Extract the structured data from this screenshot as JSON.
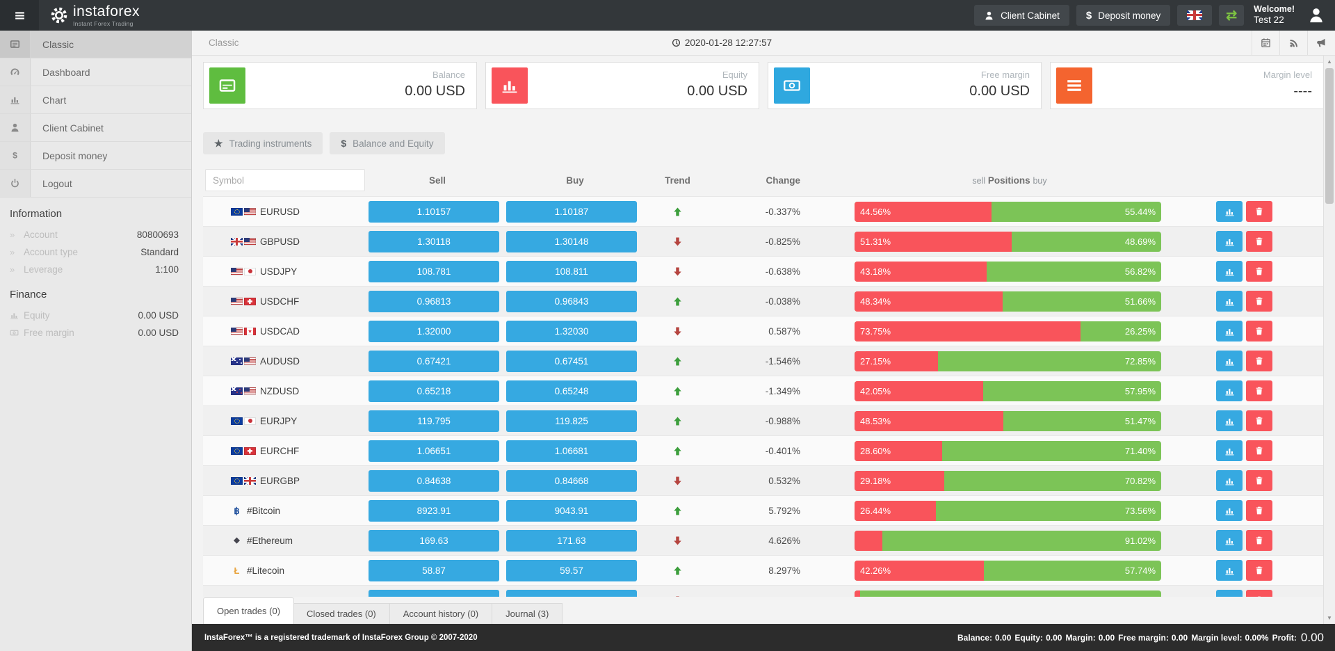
{
  "colors": {
    "blue": "#36A9E1",
    "red": "#F9545B",
    "green_bar": "#7CC457",
    "card_green": "#5FBD3F",
    "card_red": "#F9545B",
    "card_blue": "#2FA8DF",
    "card_orange": "#F4642F",
    "trend_up": "#3C9E3C",
    "trend_down": "#B5443F",
    "topbar": "#33373A"
  },
  "topbar": {
    "brand_name": "instaforex",
    "brand_tagline": "Instant Forex Trading",
    "client_cabinet_label": "Client Cabinet",
    "deposit_money_label": "Deposit money",
    "dollar_glyph": "$",
    "exchange_glyph": "⇄",
    "welcome_line1": "Welcome!",
    "welcome_line2": "Test 22"
  },
  "sidebar": {
    "menu": [
      {
        "label": "Classic",
        "icon": "i-list",
        "active": true
      },
      {
        "label": "Dashboard",
        "icon": "i-gauge"
      },
      {
        "label": "Chart",
        "icon": "i-bars"
      },
      {
        "label": "Client Cabinet",
        "icon": "i-user"
      },
      {
        "label": "Deposit money",
        "icon": "i-dollar"
      },
      {
        "label": "Logout",
        "icon": "i-power"
      }
    ],
    "information": {
      "heading": "Information",
      "rows": [
        {
          "label": "Account",
          "value": "80800693"
        },
        {
          "label": "Account type",
          "value": "Standard"
        },
        {
          "label": "Leverage",
          "value": "1:100"
        }
      ]
    },
    "finance": {
      "heading": "Finance",
      "rows": [
        {
          "label": "Equity",
          "value": "0.00 USD",
          "icon": "i-bars"
        },
        {
          "label": "Free margin",
          "value": "0.00 USD",
          "icon": "i-note"
        }
      ]
    }
  },
  "breadcrumb": {
    "title": "Classic",
    "datetime": "2020-01-28 12:27:57"
  },
  "cards": [
    {
      "label": "Balance",
      "value": "0.00 USD",
      "color": "#5FBD3F",
      "icon": "i-card"
    },
    {
      "label": "Equity",
      "value": "0.00 USD",
      "color": "#F9545B",
      "icon": "i-bars"
    },
    {
      "label": "Free margin",
      "value": "0.00 USD",
      "color": "#2FA8DF",
      "icon": "i-note"
    },
    {
      "label": "Margin level",
      "value": "----",
      "color": "#F4642F",
      "icon": "i-menu"
    }
  ],
  "filters": [
    {
      "label": "Trading instruments",
      "glyph": "★"
    },
    {
      "label": "Balance and Equity",
      "glyph": "$"
    }
  ],
  "table": {
    "symbol_placeholder": "Symbol",
    "headers": {
      "sell": "Sell",
      "buy": "Buy",
      "trend": "Trend",
      "change": "Change",
      "positions_sell": "sell",
      "positions": "Positions",
      "positions_buy": "buy"
    },
    "crypto_glyphs": {
      "btc": "฿",
      "eth": "◆",
      "ltc": "Ł"
    },
    "rows": [
      {
        "symbol": "EURUSD",
        "flags": [
          "eu",
          "us"
        ],
        "sell": "1.10157",
        "buy": "1.10187",
        "trend": "up",
        "change": "-0.337%",
        "sell_pct": 44.56,
        "buy_pct": 55.44,
        "sell_pct_label": "44.56%",
        "buy_pct_label": "55.44%"
      },
      {
        "symbol": "GBPUSD",
        "flags": [
          "gb",
          "us"
        ],
        "sell": "1.30118",
        "buy": "1.30148",
        "trend": "down",
        "change": "-0.825%",
        "sell_pct": 51.31,
        "buy_pct": 48.69,
        "sell_pct_label": "51.31%",
        "buy_pct_label": "48.69%"
      },
      {
        "symbol": "USDJPY",
        "flags": [
          "us",
          "jp"
        ],
        "sell": "108.781",
        "buy": "108.811",
        "trend": "down",
        "change": "-0.638%",
        "sell_pct": 43.18,
        "buy_pct": 56.82,
        "sell_pct_label": "43.18%",
        "buy_pct_label": "56.82%"
      },
      {
        "symbol": "USDCHF",
        "flags": [
          "us",
          "ch"
        ],
        "sell": "0.96813",
        "buy": "0.96843",
        "trend": "up",
        "change": "-0.038%",
        "sell_pct": 48.34,
        "buy_pct": 51.66,
        "sell_pct_label": "48.34%",
        "buy_pct_label": "51.66%"
      },
      {
        "symbol": "USDCAD",
        "flags": [
          "us",
          "ca"
        ],
        "sell": "1.32000",
        "buy": "1.32030",
        "trend": "down",
        "change": "0.587%",
        "sell_pct": 73.75,
        "buy_pct": 26.25,
        "sell_pct_label": "73.75%",
        "buy_pct_label": "26.25%"
      },
      {
        "symbol": "AUDUSD",
        "flags": [
          "au",
          "us"
        ],
        "sell": "0.67421",
        "buy": "0.67451",
        "trend": "up",
        "change": "-1.546%",
        "sell_pct": 27.15,
        "buy_pct": 72.85,
        "sell_pct_label": "27.15%",
        "buy_pct_label": "72.85%"
      },
      {
        "symbol": "NZDUSD",
        "flags": [
          "nz",
          "us"
        ],
        "sell": "0.65218",
        "buy": "0.65248",
        "trend": "up",
        "change": "-1.349%",
        "sell_pct": 42.05,
        "buy_pct": 57.95,
        "sell_pct_label": "42.05%",
        "buy_pct_label": "57.95%"
      },
      {
        "symbol": "EURJPY",
        "flags": [
          "eu",
          "jp"
        ],
        "sell": "119.795",
        "buy": "119.825",
        "trend": "up",
        "change": "-0.988%",
        "sell_pct": 48.53,
        "buy_pct": 51.47,
        "sell_pct_label": "48.53%",
        "buy_pct_label": "51.47%"
      },
      {
        "symbol": "EURCHF",
        "flags": [
          "eu",
          "ch"
        ],
        "sell": "1.06651",
        "buy": "1.06681",
        "trend": "up",
        "change": "-0.401%",
        "sell_pct": 28.6,
        "buy_pct": 71.4,
        "sell_pct_label": "28.60%",
        "buy_pct_label": "71.40%"
      },
      {
        "symbol": "EURGBP",
        "flags": [
          "eu",
          "gb"
        ],
        "sell": "0.84638",
        "buy": "0.84668",
        "trend": "down",
        "change": "0.532%",
        "sell_pct": 29.18,
        "buy_pct": 70.82,
        "sell_pct_label": "29.18%",
        "buy_pct_label": "70.82%"
      },
      {
        "symbol": "#Bitcoin",
        "crypto": "btc",
        "sell": "8923.91",
        "buy": "9043.91",
        "trend": "up",
        "change": "5.792%",
        "sell_pct": 26.44,
        "buy_pct": 73.56,
        "sell_pct_label": "26.44%",
        "buy_pct_label": "73.56%"
      },
      {
        "symbol": "#Ethereum",
        "crypto": "eth",
        "sell": "169.63",
        "buy": "171.63",
        "trend": "down",
        "change": "4.626%",
        "sell_pct": 8.98,
        "buy_pct": 91.02,
        "sell_pct_label": "",
        "buy_pct_label": "91.02%"
      },
      {
        "symbol": "#Litecoin",
        "crypto": "ltc",
        "sell": "58.87",
        "buy": "59.57",
        "trend": "up",
        "change": "8.297%",
        "sell_pct": 42.26,
        "buy_pct": 57.74,
        "sell_pct_label": "42.26%",
        "buy_pct_label": "57.74%"
      },
      {
        "symbol": "",
        "dot": true,
        "sell": "",
        "buy": "",
        "trend": "down",
        "change": "",
        "sell_pct": 1.5,
        "buy_pct": 98.5,
        "sell_pct_label": "",
        "buy_pct_label": ""
      }
    ]
  },
  "tabs": [
    {
      "label": "Open trades (0)",
      "active": true
    },
    {
      "label": "Closed trades (0)"
    },
    {
      "label": "Account history (0)"
    },
    {
      "label": "Journal (3)"
    }
  ],
  "footer": {
    "trademark": "InstaForex™ is a registered trademark of InstaForex Group © 2007-2020",
    "stats": [
      {
        "label": "Balance:",
        "value": "0.00"
      },
      {
        "label": "Equity:",
        "value": "0.00"
      },
      {
        "label": "Margin:",
        "value": "0.00"
      },
      {
        "label": "Free margin:",
        "value": "0.00"
      },
      {
        "label": "Margin level:",
        "value": "0.00%"
      },
      {
        "label": "Profit:",
        "value": "0.00",
        "big": true
      }
    ]
  }
}
